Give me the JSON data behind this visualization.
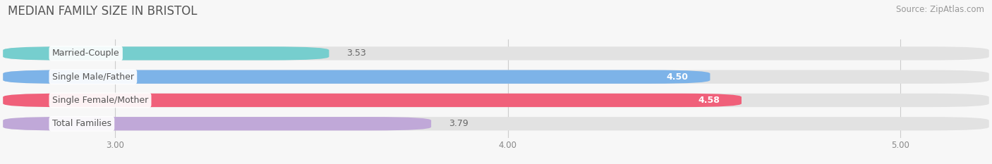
{
  "title": "MEDIAN FAMILY SIZE IN BRISTOL",
  "source": "Source: ZipAtlas.com",
  "categories": [
    "Married-Couple",
    "Single Male/Father",
    "Single Female/Mother",
    "Total Families"
  ],
  "values": [
    3.53,
    4.5,
    4.58,
    3.79
  ],
  "bar_colors": [
    "#76cece",
    "#7db3e8",
    "#f0607a",
    "#c0a8d8"
  ],
  "xlim_left": 2.72,
  "xlim_right": 5.22,
  "xticks": [
    3.0,
    4.0,
    5.0
  ],
  "xtick_labels": [
    "3.00",
    "4.00",
    "5.00"
  ],
  "background_color": "#f7f7f7",
  "bar_bg_color": "#e2e2e2",
  "title_fontsize": 12,
  "source_fontsize": 8.5,
  "label_fontsize": 9,
  "value_fontsize": 9,
  "bar_height": 0.55,
  "label_text_color": "#555555",
  "value_color_inside": "#ffffff",
  "value_color_outside": "#666666"
}
